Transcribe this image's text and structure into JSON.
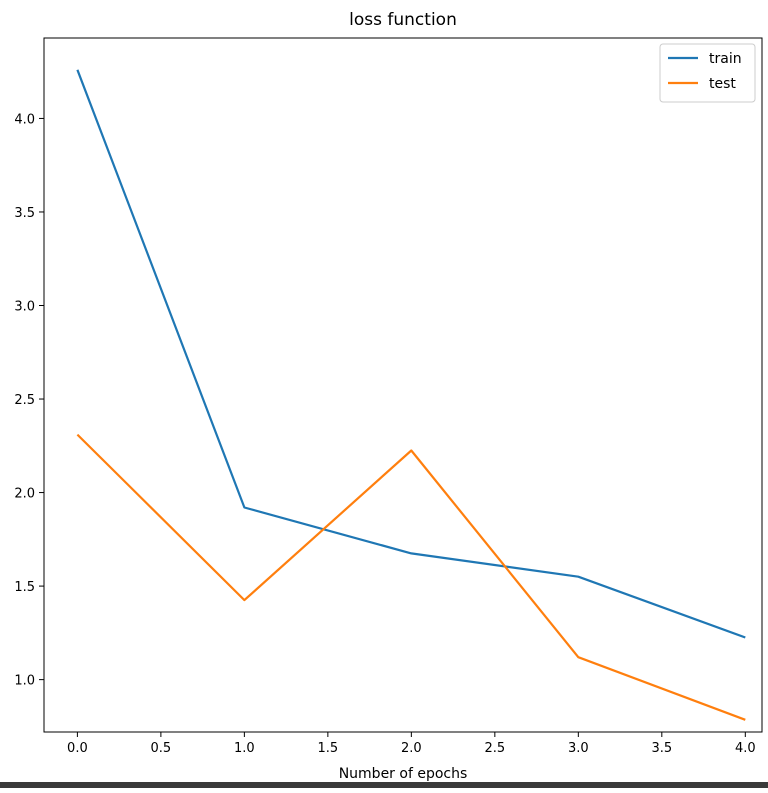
{
  "chart_data": {
    "type": "line",
    "title": "loss function",
    "xlabel": "Number of epochs",
    "ylabel": "",
    "xlim": [
      -0.2,
      4.1
    ],
    "ylim": [
      0.72,
      4.43
    ],
    "xticks": [
      0.0,
      0.5,
      1.0,
      1.5,
      2.0,
      2.5,
      3.0,
      3.5,
      4.0
    ],
    "xtick_labels": [
      "0.0",
      "0.5",
      "1.0",
      "1.5",
      "2.0",
      "2.5",
      "3.0",
      "3.5",
      "4.0"
    ],
    "yticks": [
      1.0,
      1.5,
      2.0,
      2.5,
      3.0,
      3.5,
      4.0
    ],
    "ytick_labels": [
      "1.0",
      "1.5",
      "2.0",
      "2.5",
      "3.0",
      "3.5",
      "4.0"
    ],
    "grid": false,
    "legend_position": "top-right",
    "x": [
      0,
      1,
      2,
      3,
      4
    ],
    "series": [
      {
        "name": "train",
        "color": "#1f77b4",
        "values": [
          4.26,
          1.92,
          1.675,
          1.55,
          1.225
        ]
      },
      {
        "name": "test",
        "color": "#ff7f0e",
        "values": [
          2.31,
          1.425,
          2.225,
          1.12,
          0.785
        ]
      }
    ]
  }
}
